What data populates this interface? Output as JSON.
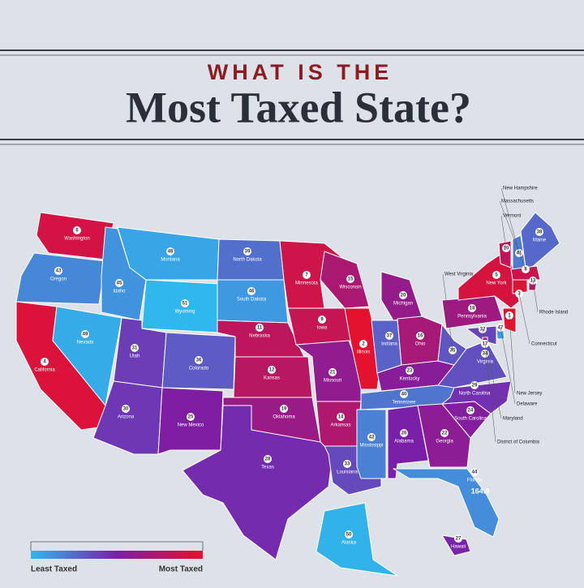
{
  "header": {
    "kicker": "WHAT IS THE",
    "title": "Most Taxed State?"
  },
  "states": [
    {
      "name": "Washington",
      "rank": 6
    },
    {
      "name": "Oregon",
      "rank": 43
    },
    {
      "name": "California",
      "rank": 4
    },
    {
      "name": "Nevada",
      "rank": 49
    },
    {
      "name": "Idaho",
      "rank": 45
    },
    {
      "name": "Montana",
      "rank": 48
    },
    {
      "name": "Wyoming",
      "rank": 51
    },
    {
      "name": "Utah",
      "rank": 31
    },
    {
      "name": "Colorado",
      "rank": 36
    },
    {
      "name": "Arizona",
      "rank": 30
    },
    {
      "name": "New Mexico",
      "rank": 25
    },
    {
      "name": "North Dakota",
      "rank": 39
    },
    {
      "name": "South Dakota",
      "rank": 46
    },
    {
      "name": "Nebraska",
      "rank": 11
    },
    {
      "name": "Kansas",
      "rank": 12
    },
    {
      "name": "Oklahoma",
      "rank": 19
    },
    {
      "name": "Texas",
      "rank": 28
    },
    {
      "name": "Minnesota",
      "rank": 7
    },
    {
      "name": "Iowa",
      "rank": 9
    },
    {
      "name": "Missouri",
      "rank": 21
    },
    {
      "name": "Arkansas",
      "rank": 14
    },
    {
      "name": "Louisiana",
      "rank": 33
    },
    {
      "name": "Wisconsin",
      "rank": 15
    },
    {
      "name": "Illinois",
      "rank": 2
    },
    {
      "name": "Michigan",
      "rank": 20
    },
    {
      "name": "Indiana",
      "rank": 37
    },
    {
      "name": "Ohio",
      "rank": 16
    },
    {
      "name": "Kentucky",
      "rank": 23
    },
    {
      "name": "Tennessee",
      "rank": 40
    },
    {
      "name": "Mississippi",
      "rank": 42
    },
    {
      "name": "Alabama",
      "rank": 26
    },
    {
      "name": "Georgia",
      "rank": 22
    },
    {
      "name": "Florida",
      "rank": 44
    },
    {
      "name": "South Carolina",
      "rank": 24
    },
    {
      "name": "North Carolina",
      "rank": 29
    },
    {
      "name": "Virginia",
      "rank": 34
    },
    {
      "name": "West Virginia",
      "rank": 35
    },
    {
      "name": "Pennsylvania",
      "rank": 18
    },
    {
      "name": "New York",
      "rank": 5
    },
    {
      "name": "Vermont",
      "rank": 10
    },
    {
      "name": "New Hampshire",
      "rank": 41
    },
    {
      "name": "Maine",
      "rank": 38
    },
    {
      "name": "Massachusetts",
      "rank": 8
    },
    {
      "name": "Rhode Island",
      "rank": 13
    },
    {
      "name": "Connecticut",
      "rank": 3
    },
    {
      "name": "New Jersey",
      "rank": 1
    },
    {
      "name": "Delaware",
      "rank": 47
    },
    {
      "name": "Maryland",
      "rank": 32
    },
    {
      "name": "District of Columbia",
      "rank": 17
    },
    {
      "name": "Alaska",
      "rank": 50
    },
    {
      "name": "Hawaii",
      "rank": 27
    }
  ],
  "florida_note": "164.9",
  "legend": {
    "low": "Least Taxed",
    "high": "Most Taxed"
  }
}
